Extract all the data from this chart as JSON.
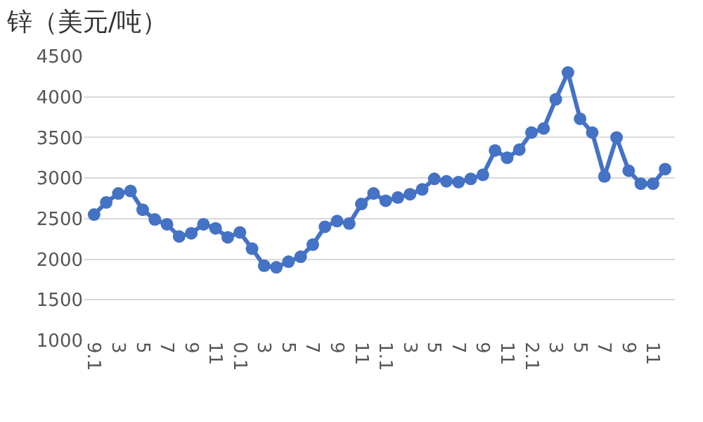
{
  "chart_data": {
    "type": "line",
    "title": "锌（美元/吨）",
    "categories": [
      "9.1",
      null,
      "3",
      null,
      "5",
      null,
      "7",
      null,
      "9",
      null,
      "11",
      null,
      "0.1",
      null,
      "3",
      null,
      "5",
      null,
      "7",
      null,
      "9",
      null,
      "11",
      null,
      "1.1",
      null,
      "3",
      null,
      "5",
      null,
      "7",
      null,
      "9",
      null,
      "11",
      null,
      "2.1",
      null,
      "3",
      null,
      "5",
      null,
      "7",
      null,
      "9",
      null,
      "11",
      null
    ],
    "series": [
      {
        "color": "#4472c4",
        "values": [
          2550,
          2700,
          2810,
          2840,
          2610,
          2490,
          2430,
          2280,
          2320,
          2430,
          2380,
          2270,
          2330,
          2130,
          1920,
          1900,
          1970,
          2030,
          2180,
          2400,
          2470,
          2440,
          2680,
          2810,
          2720,
          2760,
          2800,
          2860,
          2990,
          2960,
          2950,
          2990,
          3040,
          3340,
          3250,
          3350,
          3560,
          3610,
          3970,
          4300,
          3730,
          3560,
          3020,
          3500,
          3090,
          2930,
          2930,
          3110
        ]
      }
    ],
    "ylim": [
      1000,
      4500
    ],
    "yticks": [
      1000,
      1500,
      2000,
      2500,
      3000,
      3500,
      4000,
      4500
    ],
    "grid": "y",
    "marker": "circle",
    "line_style": "solid"
  }
}
